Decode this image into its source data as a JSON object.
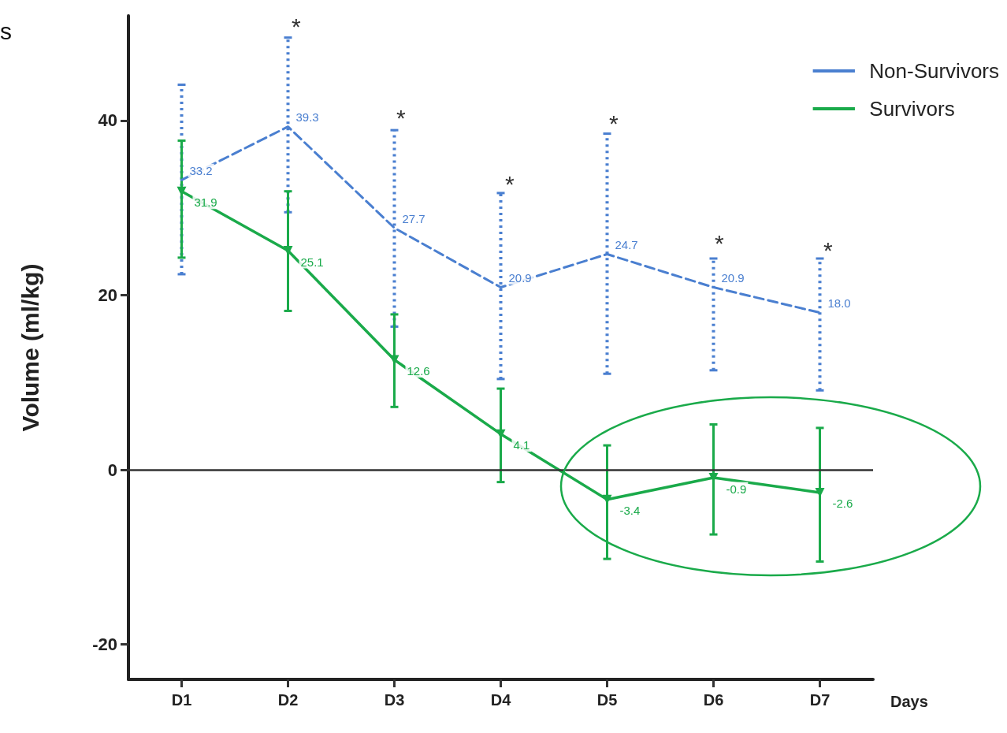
{
  "chart_data": {
    "type": "line",
    "xlabel": "Days",
    "ylabel": "Volume (ml/kg)",
    "categories": [
      "D1",
      "D2",
      "D3",
      "D4",
      "D5",
      "D6",
      "D7"
    ],
    "series": [
      {
        "name": "Non-Survivors",
        "color": "#4a7fd0",
        "line_style": "dashed",
        "marker": "none",
        "values": [
          33.2,
          39.3,
          27.7,
          20.9,
          24.7,
          20.9,
          18.0
        ],
        "value_labels": [
          "33.2",
          "39.3",
          "27.7",
          "20.9",
          "24.7",
          "20.9",
          "18.0"
        ],
        "errors": [
          [
            22.4,
            44.1
          ],
          [
            29.5,
            49.5
          ],
          [
            16.4,
            38.9
          ],
          [
            10.4,
            31.7
          ],
          [
            11.0,
            38.5
          ],
          [
            11.4,
            24.2
          ],
          [
            9.1,
            24.2
          ]
        ]
      },
      {
        "name": "Survivors",
        "color": "#1aaa4a",
        "line_style": "solid",
        "marker": "triangle",
        "values": [
          31.9,
          25.1,
          12.6,
          4.1,
          -3.4,
          -0.9,
          -2.6
        ],
        "value_labels": [
          "31.9",
          "25.1",
          "12.6",
          "4.1",
          "-3.4",
          "-0.9",
          "-2.6"
        ],
        "errors": [
          [
            24.3,
            37.7
          ],
          [
            18.2,
            31.9
          ],
          [
            7.2,
            17.8
          ],
          [
            -1.4,
            9.3
          ],
          [
            -10.2,
            2.8
          ],
          [
            -7.4,
            5.2
          ],
          [
            -10.5,
            4.8
          ]
        ]
      }
    ],
    "ylim": [
      -24,
      52
    ],
    "yticks": [
      -20,
      0,
      20,
      40
    ],
    "grid": false,
    "legend": "top right",
    "ref_lines": [
      {
        "axis": "y",
        "value": 0,
        "color": "#333333"
      }
    ],
    "annotations": [
      "s",
      "*",
      "*",
      "*",
      "*",
      "*",
      "*"
    ]
  }
}
